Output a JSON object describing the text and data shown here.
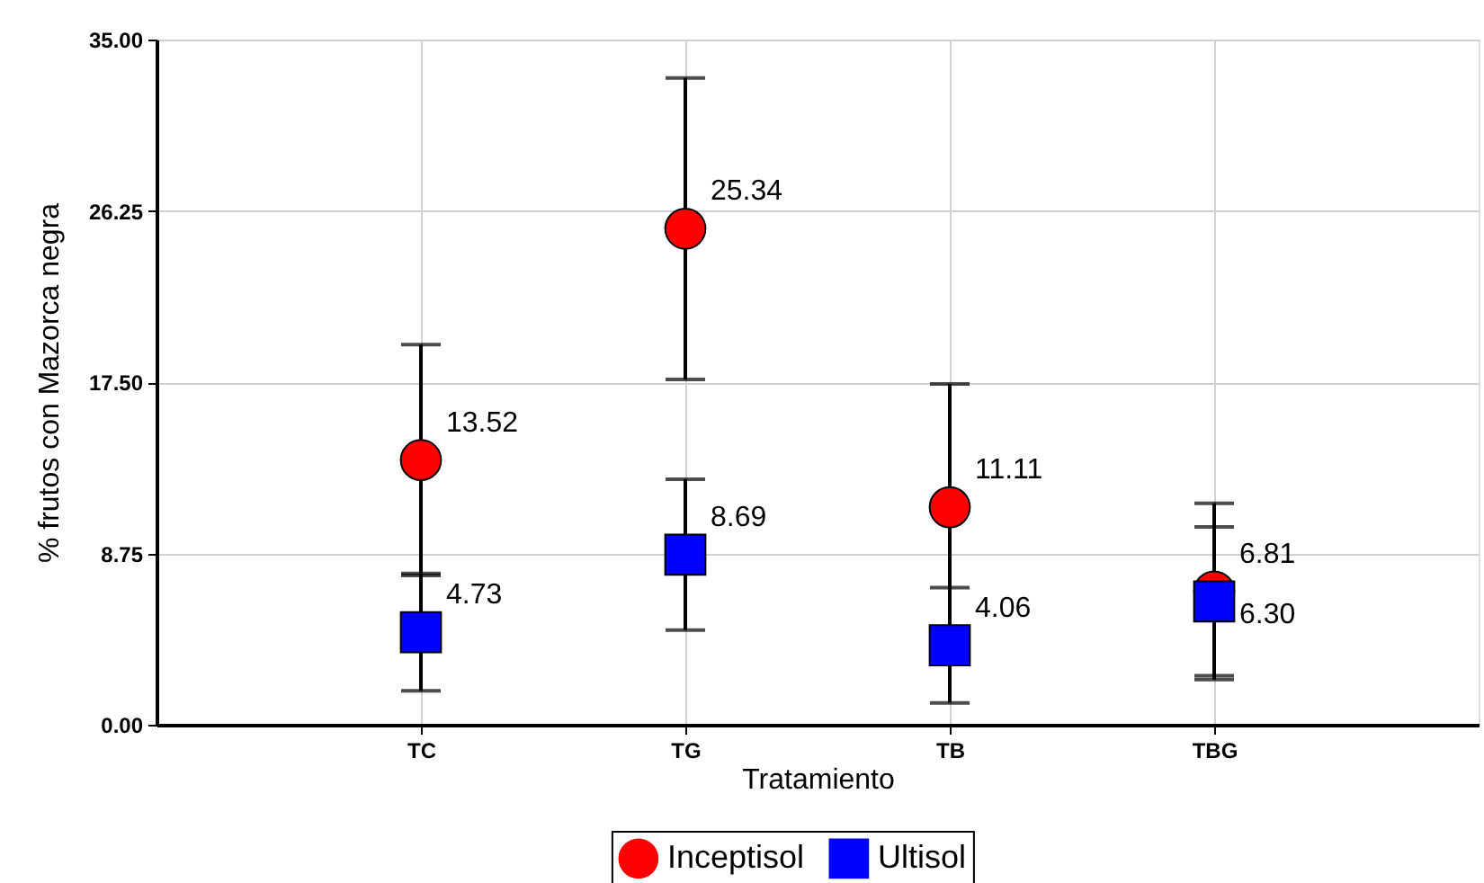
{
  "chart_data": {
    "type": "scatter",
    "xlabel": "Tratamiento",
    "ylabel": "% frutos con Mazorca negra",
    "categories": [
      "TC",
      "TG",
      "TB",
      "TBG"
    ],
    "series": [
      {
        "name": "Inceptisol",
        "color": "#ff0000",
        "marker": "circle",
        "values": [
          13.52,
          25.34,
          11.11,
          6.81
        ],
        "errors": [
          5.9,
          7.7,
          6.3,
          4.5
        ],
        "value_labels": [
          "13.52",
          "25.34",
          "11.11",
          "6.81"
        ]
      },
      {
        "name": "Ultisol",
        "color": "#0000ff",
        "marker": "square",
        "values": [
          4.73,
          8.69,
          4.06,
          6.3
        ],
        "errors": [
          3.0,
          3.85,
          2.95,
          3.8
        ],
        "value_labels": [
          "4.73",
          "8.69",
          "4.06",
          "6.30"
        ]
      }
    ],
    "ylim": [
      0,
      35
    ],
    "yticks": [
      {
        "value": 0,
        "label": "0.00"
      },
      {
        "value": 8.75,
        "label": "8.75"
      },
      {
        "value": 17.5,
        "label": "17.50"
      },
      {
        "value": 26.25,
        "label": "26.25"
      },
      {
        "value": 35,
        "label": "35.00"
      }
    ],
    "grid": true,
    "legend": "bottom"
  }
}
